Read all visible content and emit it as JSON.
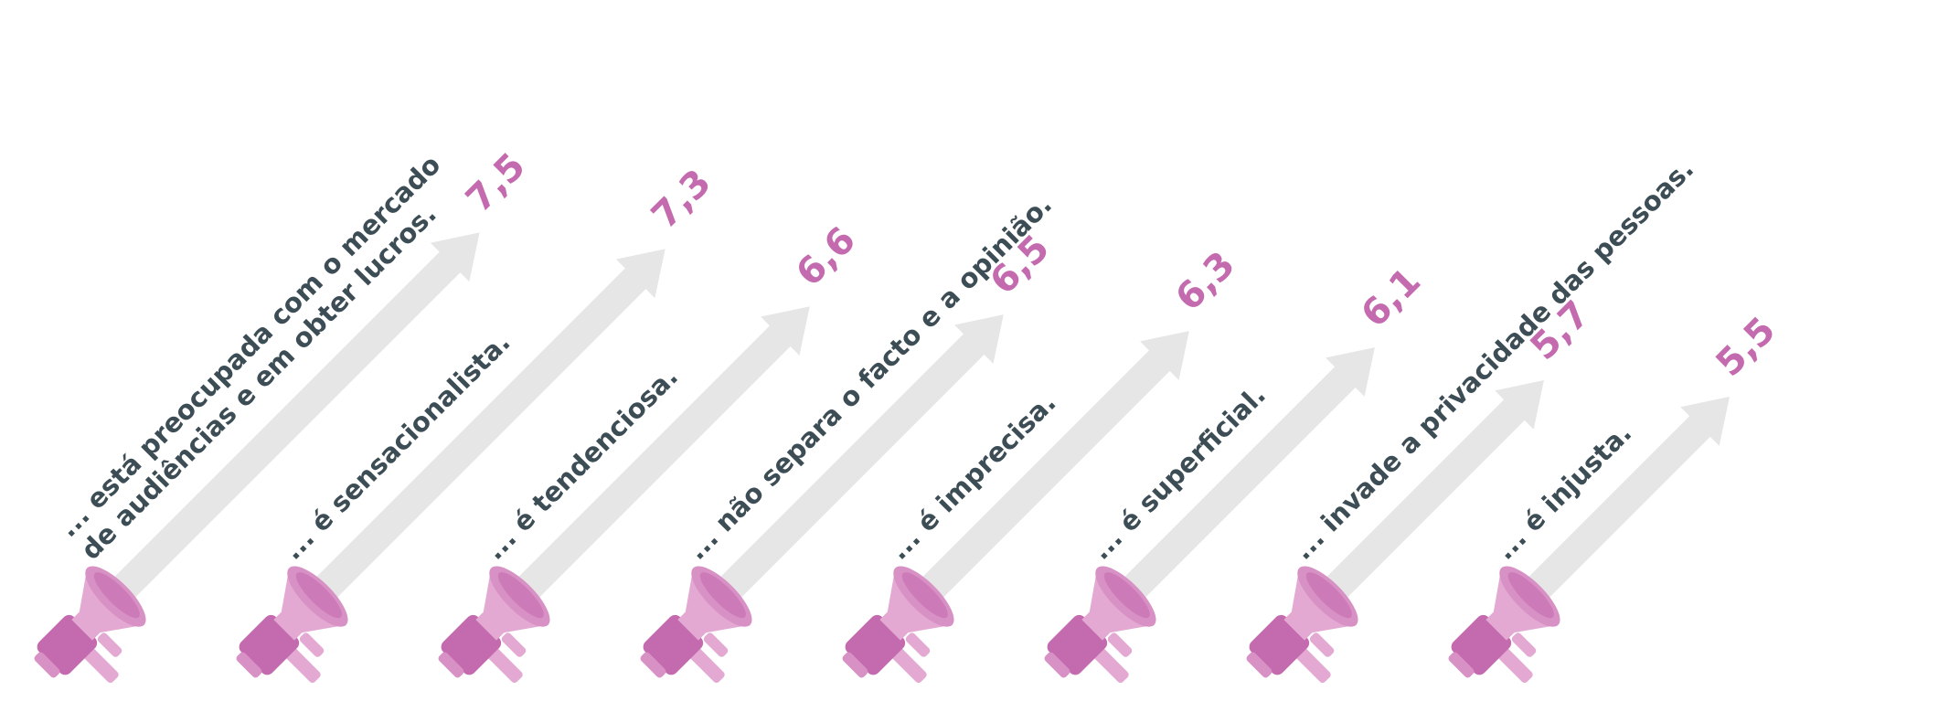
{
  "chart_data": {
    "type": "bar",
    "categories": [
      [
        "... está preocupada com o mercado",
        "de audiências e em obter lucros."
      ],
      [
        "... é sensacionalista."
      ],
      [
        "... é tendenciosa."
      ],
      [
        "... não separa o facto e a opinião."
      ],
      [
        "... é imprecisa."
      ],
      [
        "... é superficial."
      ],
      [
        "... invade a privacidade das pessoas."
      ],
      [
        "... é injusta."
      ]
    ],
    "values": [
      7.5,
      7.3,
      6.6,
      6.5,
      6.3,
      6.1,
      5.7,
      5.5
    ],
    "value_labels": [
      "7,5",
      "7,3",
      "6,6",
      "6,5",
      "6,3",
      "6,1",
      "5,7",
      "5,5"
    ],
    "colors": {
      "arrow": "#e6e6e6",
      "value": "#c46aae",
      "label": "#3d4d55",
      "megaphone_light": "#e3a9d2",
      "megaphone_mid": "#d891c4",
      "megaphone_dark": "#c46aae"
    },
    "icon": "megaphone-icon"
  }
}
